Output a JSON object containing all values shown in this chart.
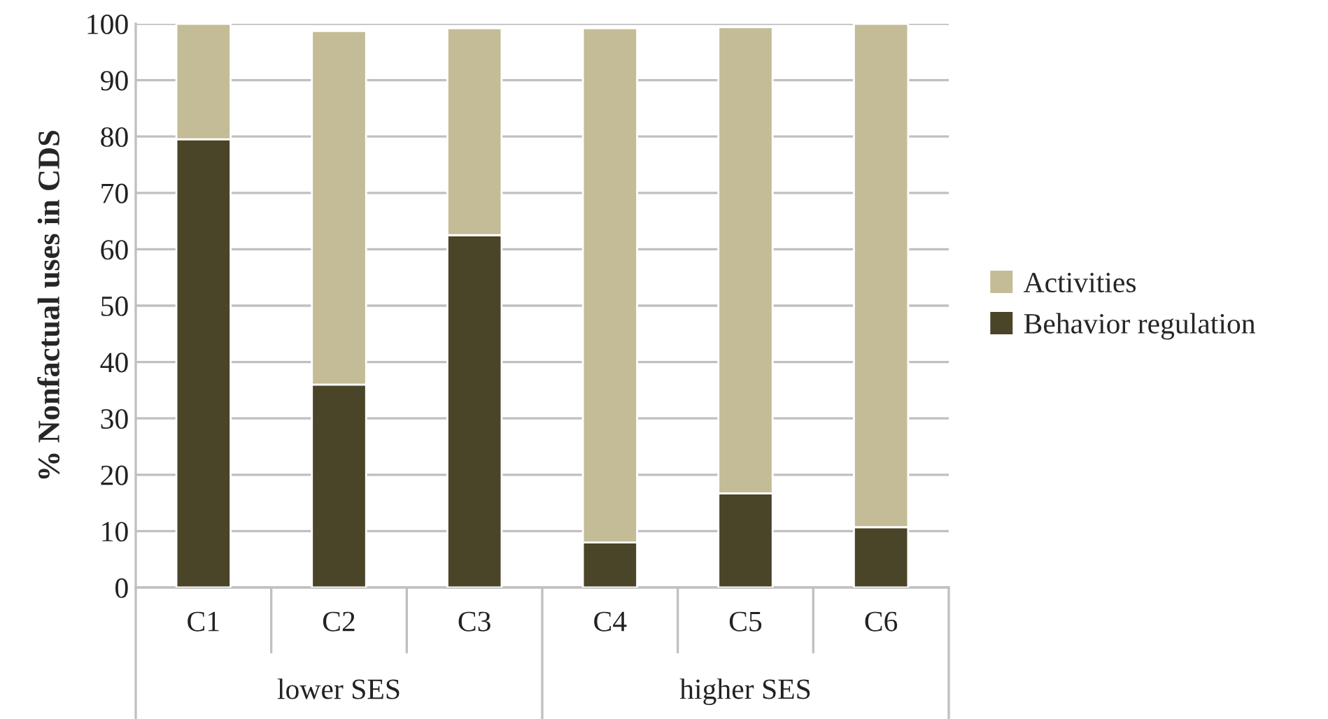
{
  "chart_data": {
    "type": "bar",
    "stacked": true,
    "ylabel": "% Nonfactual uses in CDS",
    "categories": [
      "C1",
      "C2",
      "C3",
      "C4",
      "C5",
      "C6"
    ],
    "series": [
      {
        "name": "Behavior regulation",
        "color": "#4a4428",
        "values": [
          79.5,
          36,
          62.5,
          8,
          16.7,
          10.7
        ]
      },
      {
        "name": "Activities",
        "color": "#c4bc96",
        "values": [
          20.5,
          62.7,
          36.7,
          91.2,
          82.7,
          89.3
        ]
      }
    ],
    "annotations": [
      "lower SES",
      "higher SES"
    ],
    "ylim": [
      0,
      100
    ],
    "yticks": [
      0,
      10,
      20,
      30,
      40,
      50,
      60,
      70,
      80,
      90,
      100
    ],
    "grid": "y",
    "legend": "right"
  }
}
